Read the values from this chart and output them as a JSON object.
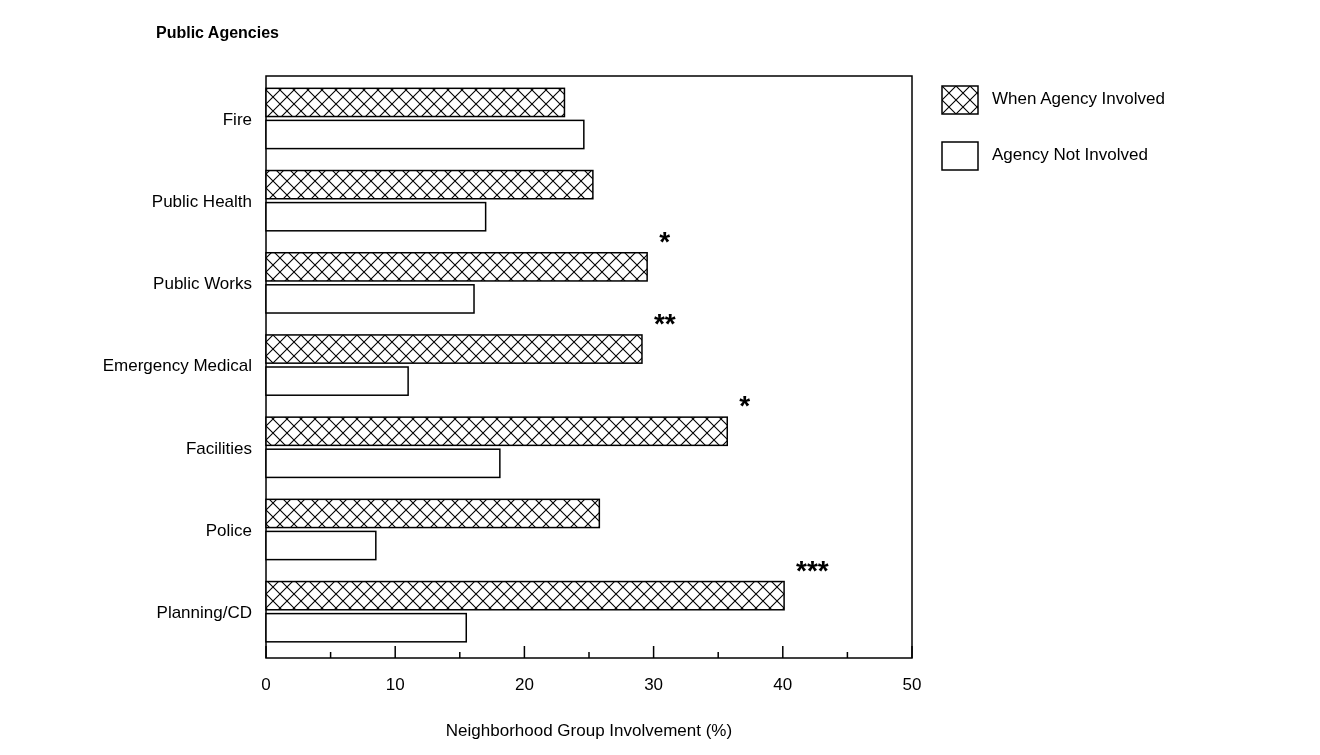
{
  "chart_data": {
    "type": "bar",
    "orientation": "horizontal",
    "ylabel": "Public Agencies",
    "xlabel": "Neighborhood Group Involvement (%)",
    "categories": [
      "Fire",
      "Public Health",
      "Public Works",
      "Emergency Medical",
      "Facilities",
      "Police",
      "Planning/CD"
    ],
    "series": [
      {
        "name": "When Agency Involved",
        "color": "#000000",
        "values": [
          23.1,
          25.3,
          29.5,
          29.1,
          35.7,
          25.8,
          40.1
        ]
      },
      {
        "name": "Agency Not Involved",
        "color": "#ffffff",
        "values": [
          24.6,
          17.0,
          16.1,
          11.0,
          18.1,
          8.5,
          15.5
        ]
      }
    ],
    "xlim": [
      0,
      50
    ],
    "xticks": [
      0,
      {
        "value": 5,
        "label": null
      },
      10,
      {
        "value": 15,
        "label": null
      },
      20,
      {
        "value": 25,
        "label": null
      },
      30,
      {
        "value": 35,
        "label": null
      },
      40,
      {
        "value": 45,
        "label": null
      },
      50
    ],
    "grid": false,
    "legend": "top right",
    "annotations": [
      {
        "text": "*",
        "x": 29.5,
        "y": "Public Works"
      },
      {
        "text": "**",
        "x": 29.1,
        "y": "Emergency Medical"
      },
      {
        "text": "*",
        "x": 35.7,
        "y": "Facilities"
      },
      {
        "text": "***",
        "x": 40.1,
        "y": "Planning/CD"
      }
    ]
  }
}
